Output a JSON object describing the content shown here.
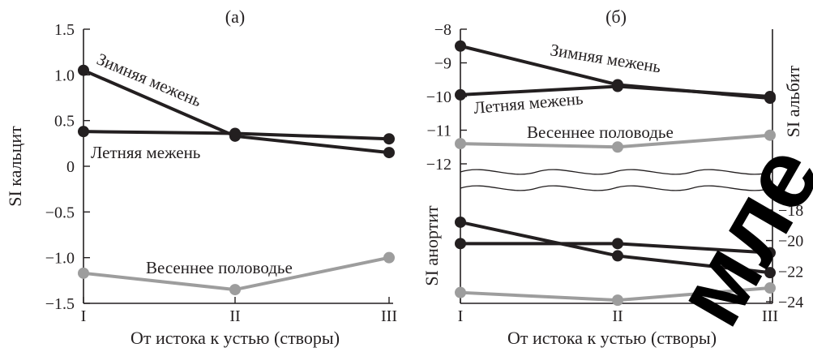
{
  "chart_data": [
    {
      "panel": "(а)",
      "type": "line",
      "ylabel": "SI кальцит",
      "xlabel": "От истока к устью (створы)",
      "categories": [
        "I",
        "II",
        "III"
      ],
      "ylim": [
        -1.5,
        1.5
      ],
      "yticks": [
        "1.5",
        "1.0",
        "0.5",
        "0",
        "−0.5",
        "−1.0",
        "−1.5"
      ],
      "series": [
        {
          "name": "Зимняя межень",
          "values": [
            1.05,
            0.33,
            0.15
          ],
          "color": "#231f20"
        },
        {
          "name": "Летняя межень",
          "values": [
            0.38,
            0.36,
            0.3
          ],
          "color": "#231f20"
        },
        {
          "name": "Весеннее половодье",
          "values": [
            -1.17,
            -1.35,
            -1.0
          ],
          "color": "#9d9d9d"
        }
      ]
    },
    {
      "panel": "(б)",
      "type": "line",
      "ylabel_left_top": "",
      "ylabel_right_top": "SI альбит",
      "ylabel_left_bottom": "SI анортит",
      "xlabel": "От истока к устью (створы)",
      "categories": [
        "I",
        "II",
        "III"
      ],
      "top_ylim": [
        -12,
        -8
      ],
      "top_yticks": [
        "−8",
        "−9",
        "−10",
        "−11",
        "−12"
      ],
      "bottom_ylim": [
        -24,
        -17
      ],
      "bottom_yticks_right": [
        "−18",
        "−20",
        "−22",
        "−24"
      ],
      "top_series": [
        {
          "name": "Зимняя межень",
          "values": [
            -8.5,
            -9.65,
            -10.05
          ],
          "color": "#231f20"
        },
        {
          "name": "Летняя межень",
          "values": [
            -9.95,
            -9.7,
            -10.0
          ],
          "color": "#231f20"
        },
        {
          "name": "Весеннее половодье",
          "values": [
            -11.4,
            -11.5,
            -11.15
          ],
          "color": "#9d9d9d"
        }
      ],
      "bottom_series": [
        {
          "name": "Зимняя межень",
          "values": [
            -18.8,
            -21.0,
            -22.1
          ],
          "color": "#231f20"
        },
        {
          "name": "Летняя межень",
          "values": [
            -20.2,
            -20.2,
            -20.8
          ],
          "color": "#231f20"
        },
        {
          "name": "Весеннее половодье",
          "values": [
            -23.4,
            -23.9,
            -23.1
          ],
          "color": "#9d9d9d"
        }
      ]
    }
  ],
  "watermark": "мле"
}
